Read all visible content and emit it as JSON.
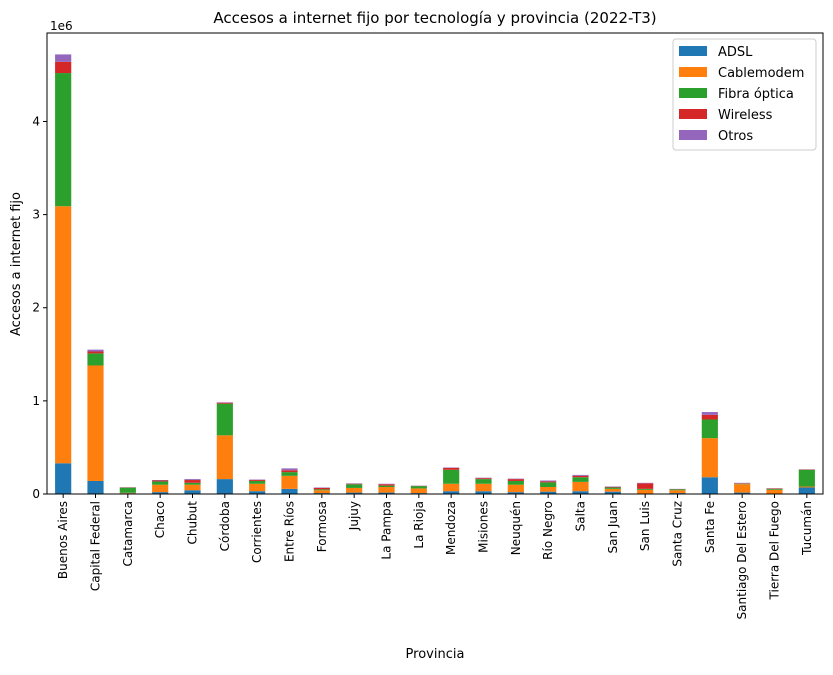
{
  "chart_data": {
    "type": "bar",
    "stacked": true,
    "title": "Accesos a internet fijo por tecnología y provincia (2022-T3)",
    "xlabel": "Provincia",
    "ylabel": "Accesos a internet fijo",
    "y_offset_label": "1e6",
    "ylim": [
      0,
      4950000
    ],
    "yticks": [
      0,
      1000000,
      2000000,
      3000000,
      4000000
    ],
    "ytick_labels": [
      "0",
      "1",
      "2",
      "3",
      "4"
    ],
    "legend_position": "top-right",
    "grid": false,
    "categories": [
      "Buenos Aires",
      "Capital Federal",
      "Catamarca",
      "Chaco",
      "Chubut",
      "Córdoba",
      "Corrientes",
      "Entre Ríos",
      "Formosa",
      "Jujuy",
      "La Pampa",
      "La Rioja",
      "Mendoza",
      "Misiones",
      "Neuquén",
      "Río Negro",
      "Salta",
      "San Juan",
      "San Luis",
      "Santa Cruz",
      "Santa Fe",
      "Santiago Del Estero",
      "Tierra Del Fuego",
      "Tucumán"
    ],
    "series": [
      {
        "name": "ADSL",
        "color": "#1f77b4",
        "values": [
          330000,
          140000,
          8000,
          20000,
          40000,
          160000,
          30000,
          55000,
          10000,
          15000,
          15000,
          10000,
          30000,
          30000,
          20000,
          25000,
          30000,
          25000,
          5000,
          10000,
          180000,
          15000,
          5000,
          70000
        ]
      },
      {
        "name": "Cablemodem",
        "color": "#ff7f0e",
        "values": [
          2760000,
          1240000,
          5000,
          80000,
          60000,
          470000,
          80000,
          140000,
          30000,
          50000,
          60000,
          50000,
          80000,
          80000,
          80000,
          50000,
          100000,
          30000,
          40000,
          30000,
          420000,
          90000,
          40000,
          10000
        ]
      },
      {
        "name": "Fibra óptica",
        "color": "#2ca02c",
        "values": [
          1430000,
          130000,
          55000,
          35000,
          20000,
          340000,
          30000,
          40000,
          10000,
          40000,
          15000,
          25000,
          150000,
          50000,
          40000,
          50000,
          50000,
          15000,
          10000,
          10000,
          200000,
          5000,
          10000,
          180000
        ]
      },
      {
        "name": "Wireless",
        "color": "#d62728",
        "values": [
          120000,
          20000,
          3000,
          10000,
          30000,
          10000,
          10000,
          20000,
          15000,
          5000,
          15000,
          3000,
          20000,
          10000,
          20000,
          10000,
          15000,
          5000,
          60000,
          3000,
          50000,
          5000,
          5000,
          3000
        ]
      },
      {
        "name": "Otros",
        "color": "#9467bd",
        "values": [
          80000,
          20000,
          2000,
          5000,
          10000,
          5000,
          5000,
          20000,
          5000,
          5000,
          5000,
          2000,
          5000,
          5000,
          5000,
          10000,
          10000,
          5000,
          5000,
          2000,
          30000,
          5000,
          2000,
          2000
        ]
      }
    ]
  }
}
